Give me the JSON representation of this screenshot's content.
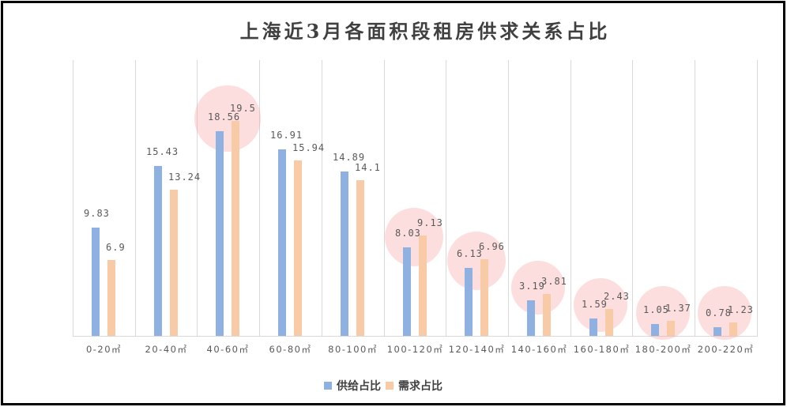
{
  "title": "上海近3月各面积段租房供求关系占比",
  "colors": {
    "supply": "#8fb1e2",
    "demand": "#f8cba6",
    "highlight": "#fadada",
    "border": "#000000",
    "grid": "#d9d9d9"
  },
  "legend": [
    {
      "name": "供给占比",
      "color": "#8fb1e2"
    },
    {
      "name": "需求占比",
      "color": "#f8cba6"
    }
  ],
  "unit_suffix": "㎡",
  "chart_data": {
    "type": "bar",
    "title": "上海近3月各面积段租房供求关系占比",
    "xlabel": "",
    "ylabel": "",
    "categories": [
      "0-20㎡",
      "20-40㎡",
      "40-60㎡",
      "60-80㎡",
      "80-100㎡",
      "100-120㎡",
      "120-140㎡",
      "140-160㎡",
      "160-180㎡",
      "180-200㎡",
      "200-220㎡"
    ],
    "series": [
      {
        "name": "供给占比",
        "values": [
          9.83,
          15.43,
          18.56,
          16.91,
          14.89,
          8.03,
          6.13,
          3.19,
          1.59,
          1.05,
          0.78
        ]
      },
      {
        "name": "需求占比",
        "values": [
          6.9,
          13.24,
          19.5,
          15.94,
          14.1,
          9.13,
          6.96,
          3.81,
          2.43,
          1.37,
          1.23
        ]
      }
    ],
    "highlighted_categories": [
      "40-60㎡",
      "100-120㎡",
      "120-140㎡",
      "140-160㎡",
      "160-180㎡",
      "180-200㎡",
      "200-220㎡"
    ],
    "data_labels": true,
    "grid": "vertical category separators",
    "legend_position": "bottom",
    "ylim": [
      0,
      20
    ]
  }
}
